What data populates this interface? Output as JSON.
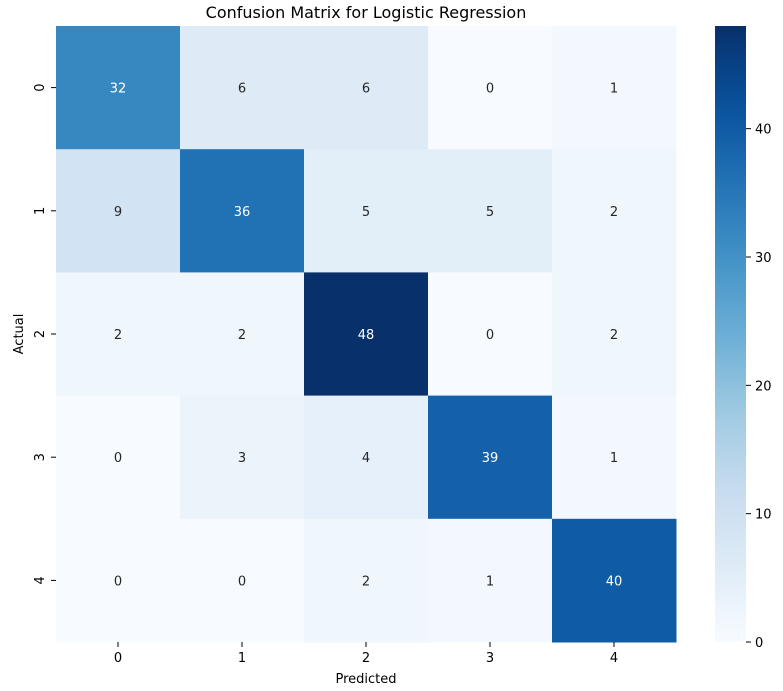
{
  "chart_data": {
    "type": "heatmap",
    "title": "Confusion Matrix for Logistic Regression",
    "xlabel": "Predicted",
    "ylabel": "Actual",
    "x_categories": [
      "0",
      "1",
      "2",
      "3",
      "4"
    ],
    "y_categories": [
      "0",
      "1",
      "2",
      "3",
      "4"
    ],
    "values": [
      [
        32,
        6,
        6,
        0,
        1
      ],
      [
        9,
        36,
        5,
        5,
        2
      ],
      [
        2,
        2,
        48,
        0,
        2
      ],
      [
        0,
        3,
        4,
        39,
        1
      ],
      [
        0,
        0,
        2,
        1,
        40
      ]
    ],
    "colormap": "Blues",
    "value_range": [
      0,
      48
    ],
    "colorbar_ticks": [
      0,
      10,
      20,
      30,
      40
    ],
    "annotations": true,
    "colors": {
      "low": "#f7fbff",
      "high": "#08306b",
      "annotation_dark": "#262626",
      "annotation_light": "#ffffff"
    }
  }
}
